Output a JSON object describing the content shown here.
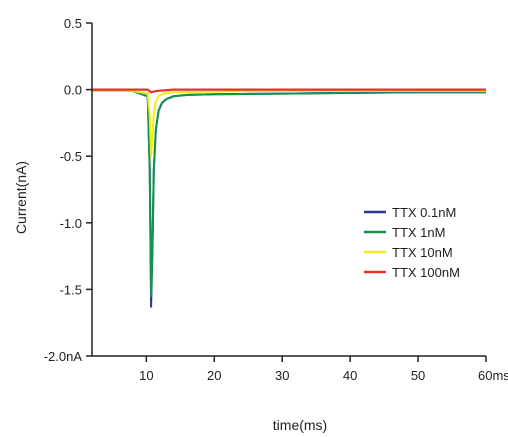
{
  "chart_data": {
    "type": "line",
    "title": "",
    "xlabel": "time(ms)",
    "ylabel": "Current(nA)",
    "xlim": [
      2,
      60
    ],
    "ylim": [
      -2.0,
      0.5
    ],
    "x_ticks": [
      {
        "value": 10,
        "label": "10"
      },
      {
        "value": 20,
        "label": "20"
      },
      {
        "value": 30,
        "label": "30"
      },
      {
        "value": 40,
        "label": "40"
      },
      {
        "value": 50,
        "label": "50"
      },
      {
        "value": 60,
        "label": "60ms"
      }
    ],
    "y_ticks": [
      {
        "value": 0.5,
        "label": "0.5"
      },
      {
        "value": 0.0,
        "label": "0.0"
      },
      {
        "value": -0.5,
        "label": "-0.5"
      },
      {
        "value": -1.0,
        "label": "-1.0"
      },
      {
        "value": -1.5,
        "label": "-1.5"
      },
      {
        "value": -2.0,
        "label": "-2.0nA"
      }
    ],
    "grid": false,
    "legend_position": "right",
    "series": [
      {
        "name": "TTX 0.1nM",
        "color": "#2b3990",
        "x": [
          2,
          8,
          10.2,
          10.5,
          10.7,
          10.9,
          11.1,
          11.4,
          11.8,
          12.3,
          13,
          14,
          16,
          20,
          30,
          40,
          50,
          60
        ],
        "y": [
          -0.01,
          -0.01,
          -0.05,
          -0.6,
          -1.63,
          -1.2,
          -0.6,
          -0.3,
          -0.16,
          -0.1,
          -0.07,
          -0.05,
          -0.04,
          -0.035,
          -0.03,
          -0.025,
          -0.02,
          -0.02
        ]
      },
      {
        "name": "TTX 1nM",
        "color": "#13944a",
        "x": [
          2,
          8,
          10.2,
          10.5,
          10.7,
          10.9,
          11.1,
          11.4,
          11.8,
          12.3,
          13,
          14,
          16,
          20,
          30,
          40,
          50,
          60
        ],
        "y": [
          -0.01,
          -0.01,
          -0.05,
          -0.6,
          -1.55,
          -1.15,
          -0.6,
          -0.3,
          -0.16,
          -0.1,
          -0.07,
          -0.05,
          -0.04,
          -0.035,
          -0.03,
          -0.025,
          -0.02,
          -0.02
        ]
      },
      {
        "name": "TTX 10nM",
        "color": "#f3ea1c",
        "x": [
          2,
          8,
          10.2,
          10.5,
          10.7,
          10.9,
          11.1,
          11.4,
          11.8,
          12.5,
          14,
          20,
          30,
          40,
          50,
          60
        ],
        "y": [
          -0.01,
          -0.01,
          -0.03,
          -0.2,
          -0.5,
          -0.35,
          -0.18,
          -0.09,
          -0.05,
          -0.03,
          -0.02,
          -0.015,
          -0.01,
          -0.01,
          -0.01,
          -0.01
        ]
      },
      {
        "name": "TTX 100nM",
        "color": "#e2332a",
        "x": [
          2,
          10.2,
          10.7,
          11.5,
          14,
          20,
          30,
          40,
          50,
          60
        ],
        "y": [
          0.0,
          0.0,
          -0.02,
          -0.01,
          0.0,
          0.0,
          0.0,
          0.0,
          0.0,
          0.0
        ]
      }
    ]
  }
}
